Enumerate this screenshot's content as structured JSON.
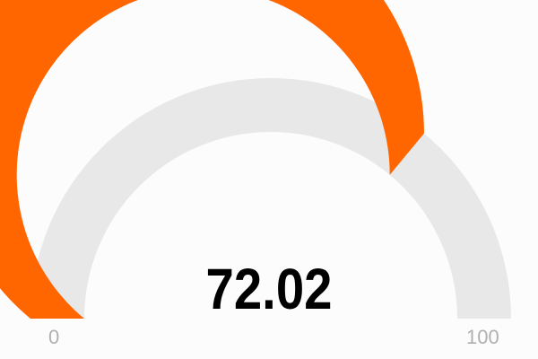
{
  "chart_data": {
    "type": "gauge",
    "value": 72.02,
    "value_label": "72.02",
    "min": 0,
    "max": 100,
    "min_label": "0",
    "max_label": "100",
    "colors": {
      "fill": "#ff6600",
      "track": "#e8e8e8",
      "value_text": "#000000",
      "range_text": "#b0b0b0",
      "background": "#fcfcfc"
    }
  }
}
